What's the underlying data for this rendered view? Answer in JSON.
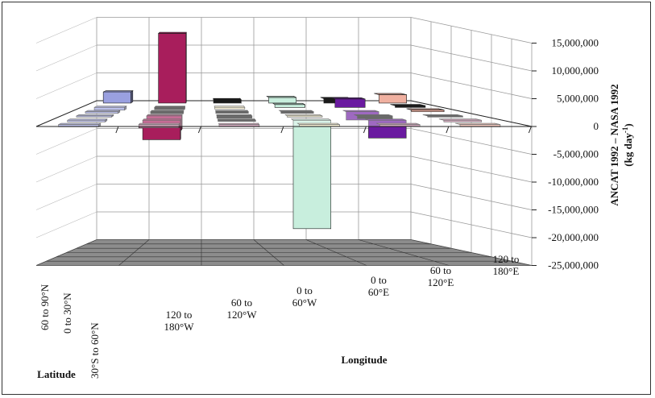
{
  "chart_data": {
    "type": "bar3d",
    "title": "",
    "ylabel_line1": "ANCAT 1992 – NASA 1992",
    "ylabel_line2_prefix": "(kg day",
    "ylabel_line2_sup": "-1",
    "ylabel_line2_suffix": ")",
    "xlabel": "Longitude",
    "zlabel": "Latitude",
    "ylim": [
      -25000000,
      15000000
    ],
    "y_ticks": [
      15000000,
      10000000,
      5000000,
      0,
      -5000000,
      -10000000,
      -15000000,
      -20000000,
      -25000000
    ],
    "y_tick_labels": [
      "15,000,000",
      "10,000,000",
      "5,000,000",
      "0",
      "-5,000,000",
      "-10,000,000",
      "-15,000,000",
      "-20,000,000",
      "-25,000,000"
    ],
    "longitude_labels": [
      [
        "120 to",
        "180°W"
      ],
      [
        "60 to",
        "120°W"
      ],
      [
        "0 to",
        "60°W"
      ],
      [
        "0 to",
        "60°E"
      ],
      [
        "60 to",
        "120°E"
      ],
      [
        "120 to",
        "180°E"
      ]
    ],
    "latitude_labels": [
      "60 to 90°N",
      "0 to 30°N",
      "30°S to 60°N"
    ],
    "series_colors": [
      "#9aa0e0",
      "#a81e5c",
      "#c8eedd",
      "#6a1aa0",
      "#f0b0a0",
      "#1a1a1a",
      "#fff4c8",
      "#c080a0"
    ],
    "bars": [
      {
        "lon": 0,
        "row": 0,
        "value": 2000000,
        "color": "#9aa0e0"
      },
      {
        "lon": 0,
        "row": 1,
        "value": -500000,
        "color": "#9aa0e0"
      },
      {
        "lon": 0,
        "row": 2,
        "value": -300000,
        "color": "#9aa0e0"
      },
      {
        "lon": 0,
        "row": 3,
        "value": -200000,
        "color": "#9aa0e0"
      },
      {
        "lon": 0,
        "row": 4,
        "value": -300000,
        "color": "#9aa0e0"
      },
      {
        "lon": 0,
        "row": 5,
        "value": -400000,
        "color": "#9aa0e0"
      },
      {
        "lon": 1,
        "row": 0,
        "value": 12500000,
        "color": "#a81e5c"
      },
      {
        "lon": 1,
        "row": 1,
        "value": -400000,
        "color": "#1a1a1a"
      },
      {
        "lon": 1,
        "row": 2,
        "value": -400000,
        "color": "#1a1a1a"
      },
      {
        "lon": 1,
        "row": 3,
        "value": -2500000,
        "color": "#a81e5c"
      },
      {
        "lon": 1,
        "row": 4,
        "value": -3500000,
        "color": "#a81e5c"
      },
      {
        "lon": 1,
        "row": 5,
        "value": -600000,
        "color": "#c080a0"
      },
      {
        "lon": 2,
        "row": 0,
        "value": 600000,
        "color": "#1a1a1a"
      },
      {
        "lon": 2,
        "row": 1,
        "value": -300000,
        "color": "#fff4c8"
      },
      {
        "lon": 2,
        "row": 2,
        "value": -300000,
        "color": "#1a1a1a"
      },
      {
        "lon": 2,
        "row": 3,
        "value": -400000,
        "color": "#1a1a1a"
      },
      {
        "lon": 2,
        "row": 4,
        "value": -200000,
        "color": "#1a1a1a"
      },
      {
        "lon": 2,
        "row": 5,
        "value": -400000,
        "color": "#c080a0"
      },
      {
        "lon": 3,
        "row": 0,
        "value": 1000000,
        "color": "#c8eedd"
      },
      {
        "lon": 3,
        "row": 1,
        "value": 500000,
        "color": "#c8eedd"
      },
      {
        "lon": 3,
        "row": 2,
        "value": -300000,
        "color": "#1a1a1a"
      },
      {
        "lon": 3,
        "row": 3,
        "value": -200000,
        "color": "#fff4c8"
      },
      {
        "lon": 3,
        "row": 4,
        "value": -19500000,
        "color": "#c8eedd"
      },
      {
        "lon": 3,
        "row": 5,
        "value": -300000,
        "color": "#fff4c8"
      },
      {
        "lon": 4,
        "row": 0,
        "value": 800000,
        "color": "#1a1a1a"
      },
      {
        "lon": 4,
        "row": 1,
        "value": 1500000,
        "color": "#6a1aa0"
      },
      {
        "lon": 4,
        "row": 2,
        "value": -1500000,
        "color": "#6a1aa0"
      },
      {
        "lon": 4,
        "row": 3,
        "value": -500000,
        "color": "#1a1a1a"
      },
      {
        "lon": 4,
        "row": 4,
        "value": -3200000,
        "color": "#6a1aa0"
      },
      {
        "lon": 4,
        "row": 5,
        "value": -300000,
        "color": "#c080a0"
      },
      {
        "lon": 5,
        "row": 0,
        "value": 1500000,
        "color": "#f0b0a0"
      },
      {
        "lon": 5,
        "row": 1,
        "value": 300000,
        "color": "#1a1a1a"
      },
      {
        "lon": 5,
        "row": 2,
        "value": 300000,
        "color": "#f0b0a0"
      },
      {
        "lon": 5,
        "row": 3,
        "value": -200000,
        "color": "#1a1a1a"
      },
      {
        "lon": 5,
        "row": 4,
        "value": -300000,
        "color": "#c080a0"
      },
      {
        "lon": 5,
        "row": 5,
        "value": -400000,
        "color": "#f0b0a0"
      }
    ],
    "grid": true,
    "floor_color": "#8c8c8c"
  }
}
